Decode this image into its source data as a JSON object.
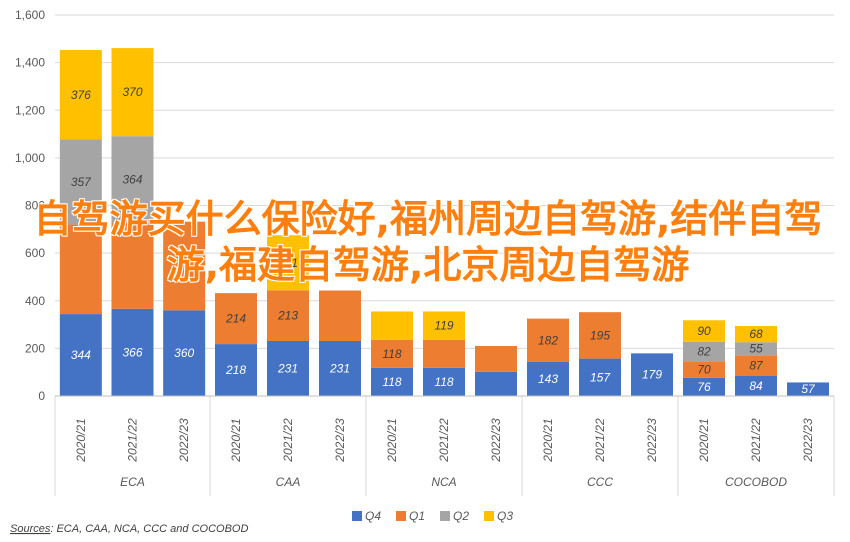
{
  "overlay": {
    "title": "自驾游买什么保险好,福州周边自驾游,结伴自驾游,福建自驾游,北京周边自驾游"
  },
  "source": {
    "prefix": "Sources",
    "text": ": ECA, CAA, NCA, CCC and COCOBOD"
  },
  "colors": {
    "Q4": "#4472c4",
    "Q1": "#ed7d31",
    "Q2": "#a5a5a5",
    "Q3": "#ffc000",
    "grid": "#d9d9d9",
    "axis_text": "#595959"
  },
  "chart_data": {
    "type": "bar",
    "stacked": true,
    "title": "",
    "xlabel": "",
    "ylabel": "",
    "ylim": [
      0,
      1600
    ],
    "yticks": [
      "0",
      "200",
      "400",
      "600",
      "800",
      "1,000",
      "1,200",
      "1,400",
      "1,600"
    ],
    "ytick_values": [
      0,
      200,
      400,
      600,
      800,
      1000,
      1200,
      1400,
      1600
    ],
    "grid": true,
    "legend_position": "bottom",
    "groups": [
      {
        "name": "ECA",
        "categories": [
          "2020/21",
          "2021/22",
          "2022/23"
        ]
      },
      {
        "name": "CAA",
        "categories": [
          "2020/21",
          "2021/22",
          "2022/23"
        ]
      },
      {
        "name": "NCA",
        "categories": [
          "2020/21",
          "2021/22",
          "2022/23"
        ]
      },
      {
        "name": "CCC",
        "categories": [
          "2020/21",
          "2021/22",
          "2022/23"
        ]
      },
      {
        "name": "COCOBOD",
        "categories": [
          "2020/21",
          "2021/22",
          "2022/23"
        ]
      }
    ],
    "series": [
      {
        "name": "Q4",
        "values": [
          344,
          366,
          360,
          218,
          231,
          231,
          118,
          118,
          102,
          143,
          157,
          179,
          76,
          84,
          57
        ]
      },
      {
        "name": "Q1",
        "values": [
          376,
          361,
          372,
          214,
          213,
          212,
          118,
          118,
          108,
          182,
          195,
          0,
          70,
          87,
          0
        ]
      },
      {
        "name": "Q2",
        "values": [
          357,
          364,
          0,
          0,
          0,
          0,
          0,
          0,
          0,
          0,
          0,
          0,
          82,
          55,
          0
        ]
      },
      {
        "name": "Q3",
        "values": [
          376,
          370,
          0,
          0,
          231,
          0,
          119,
          119,
          0,
          0,
          0,
          0,
          90,
          68,
          0
        ]
      }
    ],
    "data_labels": [
      [
        "344",
        "366",
        "360",
        "218",
        "231",
        "231",
        "118",
        "118",
        "",
        "143",
        "157",
        "179",
        "76",
        "84",
        "57"
      ],
      [
        "",
        "",
        "",
        "214",
        "213",
        "",
        "118",
        "",
        "",
        "182",
        "195",
        "",
        "70",
        "87",
        ""
      ],
      [
        "357",
        "364",
        "",
        "",
        "",
        "",
        "",
        "",
        "",
        "",
        "",
        "",
        "82",
        "55",
        ""
      ],
      [
        "376",
        "370",
        "",
        "",
        "231",
        "",
        "",
        "119",
        "",
        "",
        "",
        "",
        "90",
        "68",
        ""
      ]
    ]
  }
}
